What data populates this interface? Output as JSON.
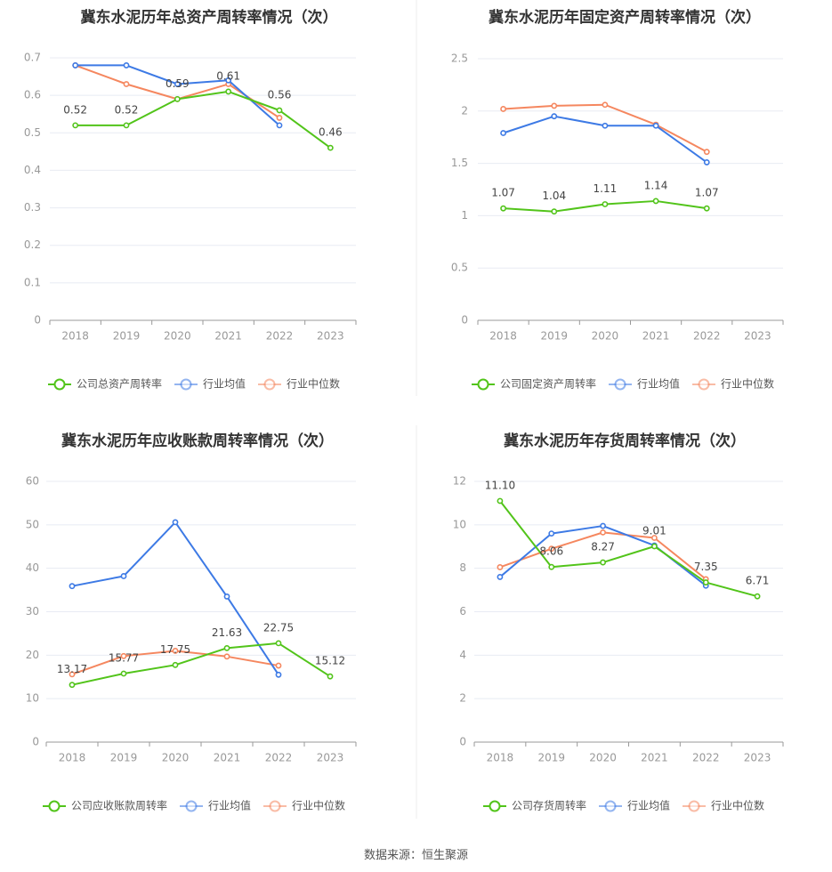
{
  "colors": {
    "company": "#52c41a",
    "industry_avg": "#3d7ae5",
    "industry_median": "#f5875f",
    "grid": "#e8ebf3",
    "axis": "#999999",
    "title": "#333333"
  },
  "footer": "数据来源：恒生聚源",
  "chart_data": [
    {
      "type": "line",
      "title": "冀东水泥历年总资产周转率情况（次）",
      "categories": [
        "2018",
        "2019",
        "2020",
        "2021",
        "2022",
        "2023"
      ],
      "y_ticks": [
        "0",
        "0.1",
        "0.2",
        "0.3",
        "0.4",
        "0.5",
        "0.6",
        "0.7"
      ],
      "ylim": [
        0,
        0.7
      ],
      "series": [
        {
          "name": "公司总资产周转率",
          "key": "company",
          "values": [
            0.52,
            0.52,
            0.59,
            0.61,
            0.56,
            0.46
          ],
          "labels": [
            "0.52",
            "0.52",
            "0.59",
            "0.61",
            "0.56",
            "0.46"
          ]
        },
        {
          "name": "行业均值",
          "key": "industry_avg",
          "values": [
            0.68,
            0.68,
            0.63,
            0.64,
            0.52,
            null
          ]
        },
        {
          "name": "行业中位数",
          "key": "industry_median",
          "values": [
            0.68,
            0.63,
            0.59,
            0.63,
            0.54,
            null
          ]
        }
      ]
    },
    {
      "type": "line",
      "title": "冀东水泥历年固定资产周转率情况（次）",
      "categories": [
        "2018",
        "2019",
        "2020",
        "2021",
        "2022",
        "2023"
      ],
      "y_ticks": [
        "0",
        "0.5",
        "1",
        "1.5",
        "2",
        "2.5"
      ],
      "ylim": [
        0,
        2.5
      ],
      "series": [
        {
          "name": "公司固定资产周转率",
          "key": "company",
          "values": [
            1.07,
            1.04,
            1.11,
            1.14,
            1.07,
            null
          ],
          "labels": [
            "1.07",
            "1.04",
            "1.11",
            "1.14",
            "1.07",
            null
          ]
        },
        {
          "name": "行业均值",
          "key": "industry_avg",
          "values": [
            1.79,
            1.95,
            1.86,
            1.86,
            1.51,
            null
          ]
        },
        {
          "name": "行业中位数",
          "key": "industry_median",
          "values": [
            2.02,
            2.05,
            2.06,
            1.87,
            1.61,
            null
          ]
        }
      ]
    },
    {
      "type": "line",
      "title": "冀东水泥历年应收账款周转率情况（次）",
      "categories": [
        "2018",
        "2019",
        "2020",
        "2021",
        "2022",
        "2023"
      ],
      "y_ticks": [
        "0",
        "10",
        "20",
        "30",
        "40",
        "50",
        "60"
      ],
      "ylim": [
        0,
        60
      ],
      "series": [
        {
          "name": "公司应收账款周转率",
          "key": "company",
          "values": [
            13.17,
            15.77,
            17.75,
            21.63,
            22.75,
            15.12
          ],
          "labels": [
            "13.17",
            "15.77",
            "17.75",
            "21.63",
            "22.75",
            "15.12"
          ]
        },
        {
          "name": "行业均值",
          "key": "industry_avg",
          "values": [
            35.9,
            38.2,
            50.6,
            33.5,
            15.5,
            null
          ]
        },
        {
          "name": "行业中位数",
          "key": "industry_median",
          "values": [
            15.6,
            19.8,
            21.0,
            19.7,
            17.6,
            null
          ]
        }
      ]
    },
    {
      "type": "line",
      "title": "冀东水泥历年存货周转率情况（次）",
      "categories": [
        "2018",
        "2019",
        "2020",
        "2021",
        "2022",
        "2023"
      ],
      "y_ticks": [
        "0",
        "2",
        "4",
        "6",
        "8",
        "10",
        "12"
      ],
      "ylim": [
        0,
        12
      ],
      "series": [
        {
          "name": "公司存货周转率",
          "key": "company",
          "values": [
            11.1,
            8.06,
            8.27,
            9.01,
            7.35,
            6.71
          ],
          "labels": [
            "11.10",
            "8.06",
            "8.27",
            "9.01",
            "7.35",
            "6.71"
          ]
        },
        {
          "name": "行业均值",
          "key": "industry_avg",
          "values": [
            7.6,
            9.6,
            9.95,
            9.05,
            7.2,
            null
          ]
        },
        {
          "name": "行业中位数",
          "key": "industry_median",
          "values": [
            8.05,
            8.9,
            9.65,
            9.4,
            7.5,
            null
          ]
        }
      ]
    }
  ]
}
